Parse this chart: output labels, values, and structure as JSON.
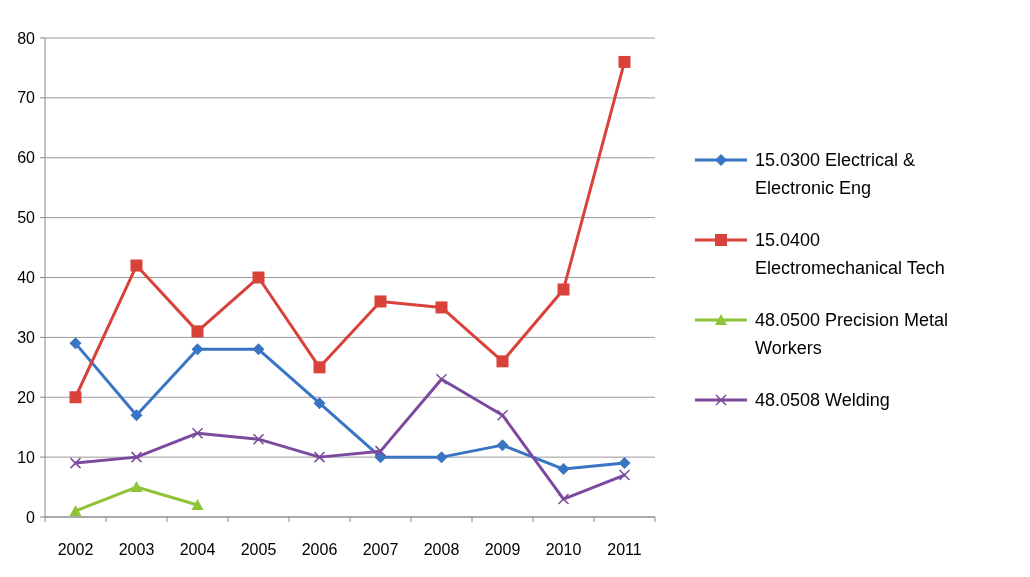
{
  "chart_data": {
    "type": "line",
    "categories": [
      "2002",
      "2003",
      "2004",
      "2005",
      "2006",
      "2007",
      "2008",
      "2009",
      "2010",
      "2011"
    ],
    "series": [
      {
        "name": "15.0300 Electrical & Electronic Eng",
        "color": "#3a75c4",
        "marker": "diamond",
        "values": [
          29,
          17,
          28,
          28,
          19,
          10,
          10,
          12,
          8,
          9
        ]
      },
      {
        "name": "15.0400 Electromechanical Tech",
        "color": "#d9423a",
        "marker": "square",
        "values": [
          20,
          42,
          31,
          40,
          25,
          36,
          35,
          26,
          38,
          76
        ]
      },
      {
        "name": "48.0500 Precision Metal Workers",
        "color": "#8fc43a",
        "marker": "triangle",
        "values": [
          1,
          5,
          2,
          null,
          null,
          null,
          null,
          null,
          null,
          null
        ]
      },
      {
        "name": "48.0508 Welding",
        "color": "#7b4a9e",
        "marker": "cross",
        "values": [
          9,
          10,
          14,
          13,
          10,
          11,
          23,
          17,
          3,
          7
        ]
      }
    ],
    "ylim": [
      0,
      80
    ],
    "yticks": [
      0,
      10,
      20,
      30,
      40,
      50,
      60,
      70,
      80
    ],
    "grid": "y",
    "legend": "right"
  }
}
